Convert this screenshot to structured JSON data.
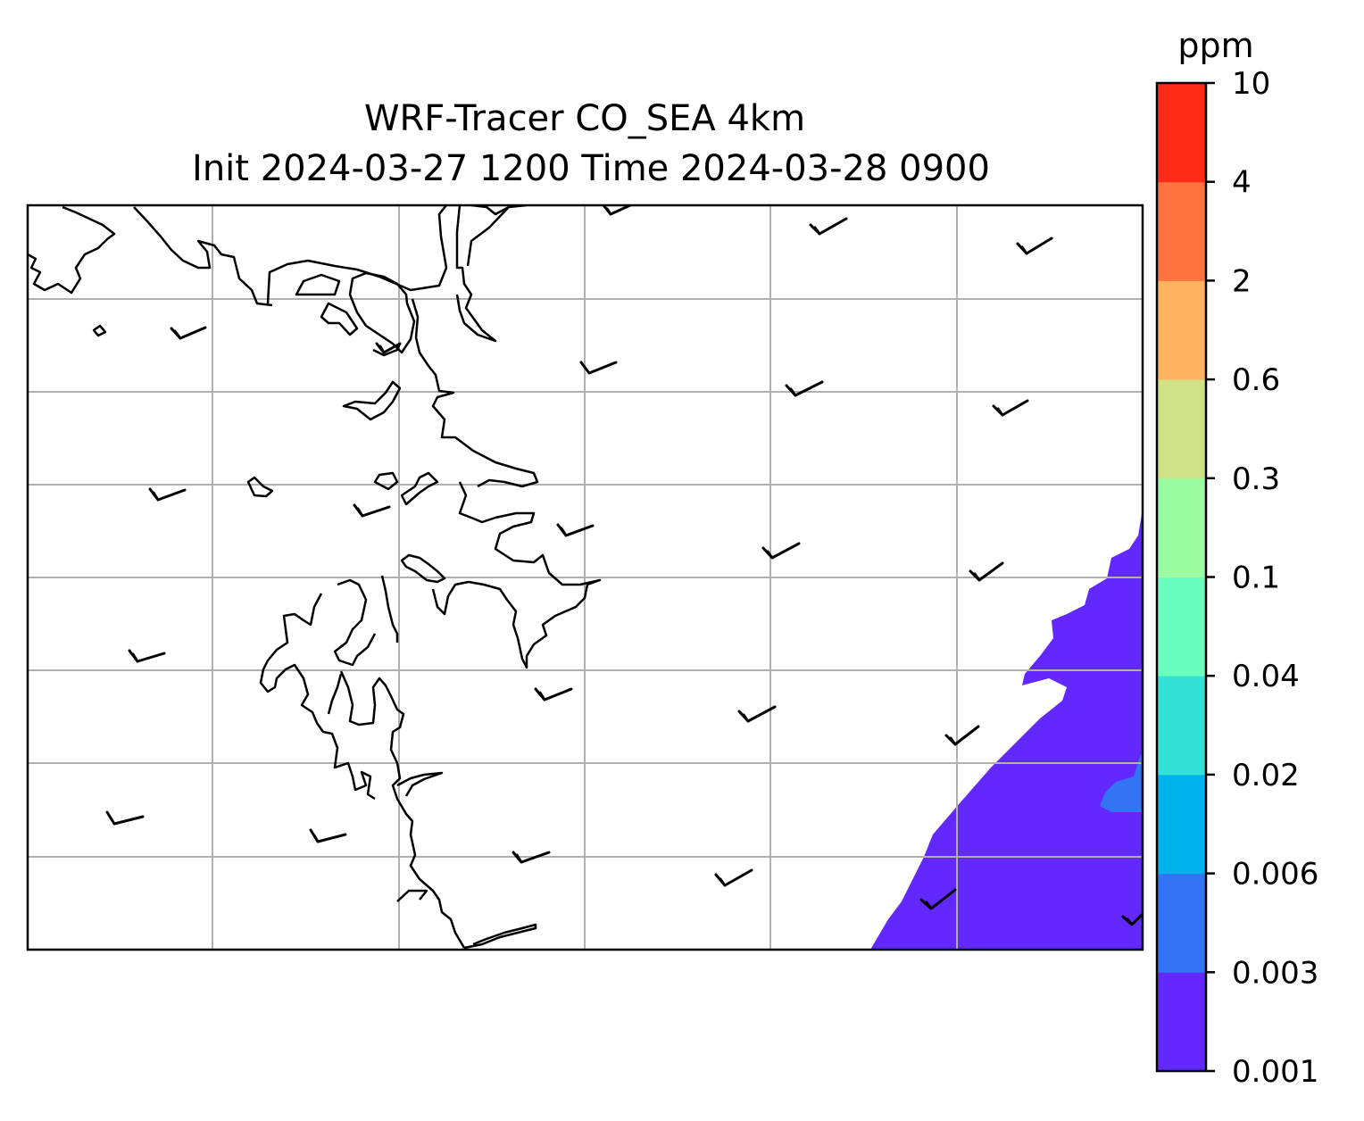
{
  "figure": {
    "title_line1": "WRF-Tracer CO_SEA 4km",
    "title_line2": "Init 2024-03-27 1200 Time 2024-03-28 0900"
  },
  "colorbar": {
    "unit": "ppm",
    "levels": [
      "0.001",
      "0.003",
      "0.006",
      "0.02",
      "0.04",
      "0.1",
      "0.3",
      "0.6",
      "2",
      "4",
      "10"
    ],
    "colors": [
      "#6228fe",
      "#3274f4",
      "#00b2ec",
      "#34e1d7",
      "#6afdc0",
      "#9bfca2",
      "#d0e286",
      "#ffb260",
      "#ff7340",
      "#ff2a18"
    ]
  },
  "map": {
    "gridlines": true,
    "gridline_color": "#b0b0b0",
    "coastline_color": "#000000",
    "shaded_region": {
      "value_range": [
        "0.001",
        "0.003"
      ],
      "color": "#6228fe",
      "location": "bottom-right"
    },
    "shaded_patch": {
      "value_range": [
        "0.003",
        "0.006"
      ],
      "color": "#3274f4"
    },
    "wind_barbs": "present across the map"
  }
}
